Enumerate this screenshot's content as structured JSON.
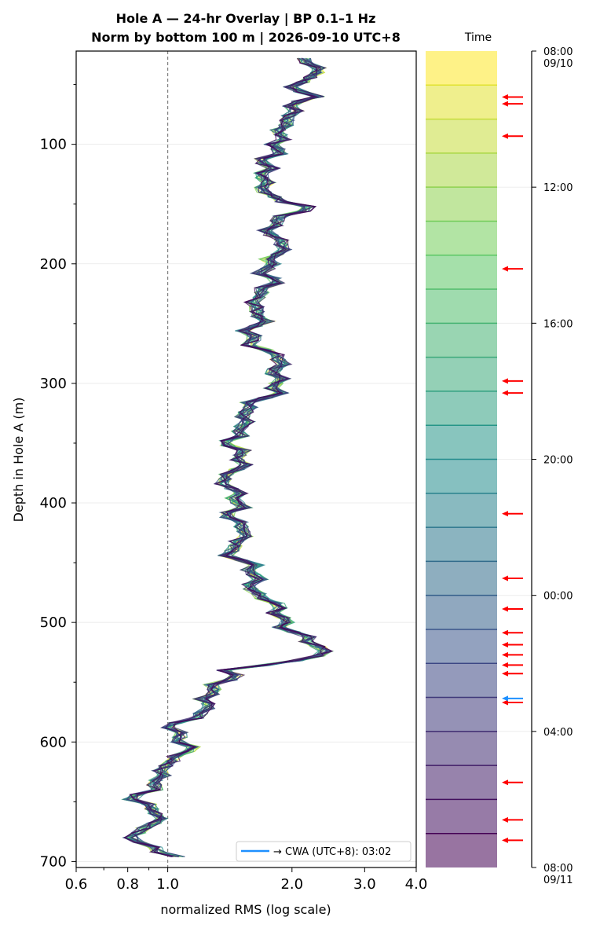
{
  "chart_data": {
    "type": "line",
    "title_line1": "Hole A — 24-hr Overlay  |  BP 0.1–1 Hz",
    "title_line2": "Norm by bottom 100 m  |  2026-09-10 UTC+8",
    "xlabel": "normalized RMS  (log scale)",
    "ylabel": "Depth in Hole A (m)",
    "x_scale": "log",
    "xlim": [
      0.6,
      4.0
    ],
    "ylim": [
      705,
      22
    ],
    "x_ticks": [
      {
        "value": 0.6,
        "label": "0.6"
      },
      {
        "value": 0.8,
        "label": "0.8"
      },
      {
        "value": 1.0,
        "label": "1.0"
      },
      {
        "value": 2.0,
        "label": "2.0"
      },
      {
        "value": 3.0,
        "label": "3.0"
      },
      {
        "value": 4.0,
        "label": "4.0"
      }
    ],
    "y_ticks": [
      100,
      200,
      300,
      400,
      500,
      600,
      700
    ],
    "reference_line": {
      "x": 1.0,
      "style": "dashed",
      "color": "#808080"
    },
    "grid": true,
    "legend": {
      "label": "→ CWA (UTC+8): 03:02",
      "color": "#1e90ff",
      "placement": "lower-right"
    },
    "series_count": 24,
    "profile": [
      {
        "d": 28,
        "x": 2.15
      },
      {
        "d": 40,
        "x": 2.25
      },
      {
        "d": 50,
        "x": 2.1
      },
      {
        "d": 60,
        "x": 2.2
      },
      {
        "d": 70,
        "x": 1.9
      },
      {
        "d": 80,
        "x": 2.05
      },
      {
        "d": 90,
        "x": 1.85
      },
      {
        "d": 100,
        "x": 1.8
      },
      {
        "d": 110,
        "x": 1.85
      },
      {
        "d": 125,
        "x": 1.65
      },
      {
        "d": 140,
        "x": 1.75
      },
      {
        "d": 152,
        "x": 2.1
      },
      {
        "d": 165,
        "x": 1.8
      },
      {
        "d": 180,
        "x": 1.85
      },
      {
        "d": 200,
        "x": 1.8
      },
      {
        "d": 220,
        "x": 1.7
      },
      {
        "d": 240,
        "x": 1.65
      },
      {
        "d": 255,
        "x": 1.6
      },
      {
        "d": 270,
        "x": 1.65
      },
      {
        "d": 285,
        "x": 1.9
      },
      {
        "d": 300,
        "x": 1.85
      },
      {
        "d": 315,
        "x": 1.65
      },
      {
        "d": 340,
        "x": 1.45
      },
      {
        "d": 360,
        "x": 1.5
      },
      {
        "d": 380,
        "x": 1.4
      },
      {
        "d": 400,
        "x": 1.45
      },
      {
        "d": 420,
        "x": 1.5
      },
      {
        "d": 440,
        "x": 1.45
      },
      {
        "d": 460,
        "x": 1.6
      },
      {
        "d": 480,
        "x": 1.7
      },
      {
        "d": 500,
        "x": 1.95
      },
      {
        "d": 515,
        "x": 2.1
      },
      {
        "d": 527,
        "x": 2.5
      },
      {
        "d": 540,
        "x": 1.4
      },
      {
        "d": 555,
        "x": 1.3
      },
      {
        "d": 570,
        "x": 1.25
      },
      {
        "d": 585,
        "x": 1.05
      },
      {
        "d": 600,
        "x": 1.1
      },
      {
        "d": 615,
        "x": 1.05
      },
      {
        "d": 630,
        "x": 0.95
      },
      {
        "d": 645,
        "x": 0.85
      },
      {
        "d": 660,
        "x": 0.95
      },
      {
        "d": 675,
        "x": 0.85
      },
      {
        "d": 690,
        "x": 0.9
      },
      {
        "d": 698,
        "x": 1.1
      }
    ],
    "colorbar": {
      "label": "Time",
      "tick_labels": [
        {
          "hour": 0,
          "label": "08:00",
          "sub": "09/10"
        },
        {
          "hour": 4,
          "label": "12:00",
          "sub": ""
        },
        {
          "hour": 8,
          "label": "16:00",
          "sub": ""
        },
        {
          "hour": 12,
          "label": "20:00",
          "sub": ""
        },
        {
          "hour": 16,
          "label": "00:00",
          "sub": ""
        },
        {
          "hour": 20,
          "label": "04:00",
          "sub": ""
        },
        {
          "hour": 24,
          "label": "08:00",
          "sub": "09/11"
        }
      ],
      "event_hours": [
        1.35,
        1.55,
        2.5,
        6.4,
        9.7,
        10.05,
        13.6,
        15.5,
        16.4,
        17.1,
        17.45,
        17.75,
        18.05,
        18.3,
        19.15,
        21.5,
        22.6,
        23.2
      ],
      "cwa_hour": 19.03,
      "event_color": "#ff0000",
      "cwa_color": "#1e90ff"
    }
  }
}
